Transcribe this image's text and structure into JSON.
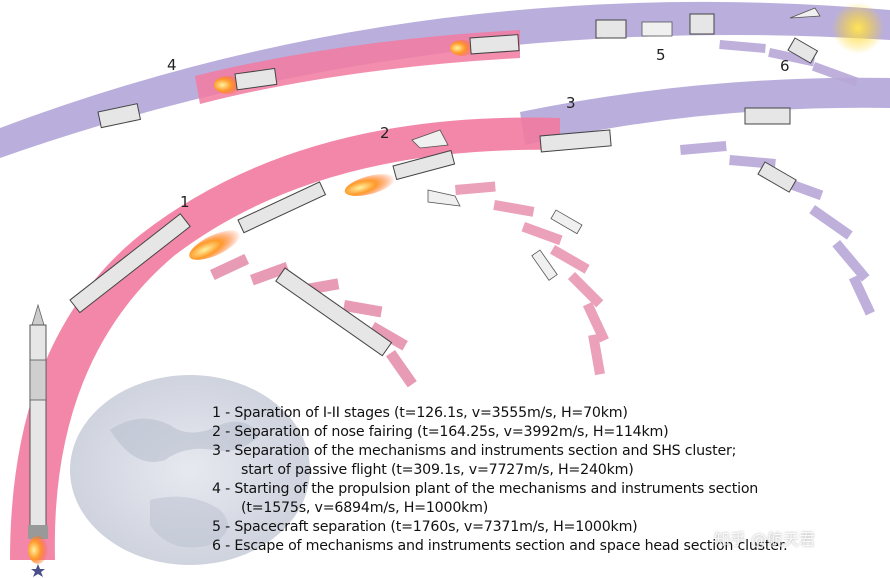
{
  "diagram": {
    "stage_labels": [
      "1",
      "2",
      "3",
      "4",
      "5",
      "6"
    ],
    "colors": {
      "lower_trajectory": "#f27aa0",
      "upper_trajectory": "#b2a6d8",
      "stage_fragments": "#e58aa8",
      "fairing_fragments": "#b8a8d8",
      "earth": "#d9dce6",
      "flame": "#ff7a1a",
      "rocket_body": "#e6e6e6"
    }
  },
  "legend": [
    {
      "num": "1",
      "text": "- Sparation of I-II stages (t=126.1s, v=3555m/s, H=70km)"
    },
    {
      "num": "2",
      "text": "- Separation of nose fairing  (t=164.25s, v=3992m/s, H=114km)"
    },
    {
      "num": "3",
      "text": "- Separation of the mechanisms and instruments section and SHS cluster;"
    },
    {
      "num": "",
      "text": "start of passive flight (t=309.1s, v=7727m/s, H=240km)"
    },
    {
      "num": "4",
      "text": "- Starting of the propulsion plant of the mechanisms and instruments section"
    },
    {
      "num": "",
      "text": "(t=1575s, v=6894m/s, H=1000km)"
    },
    {
      "num": "5",
      "text": "- Spacecraft separation  (t=1760s, v=7371m/s, H=1000km)"
    },
    {
      "num": "6",
      "text": "- Escape of mechanisms and instruments section and space head section cluster."
    }
  ],
  "watermark": "知乎 @航天君"
}
